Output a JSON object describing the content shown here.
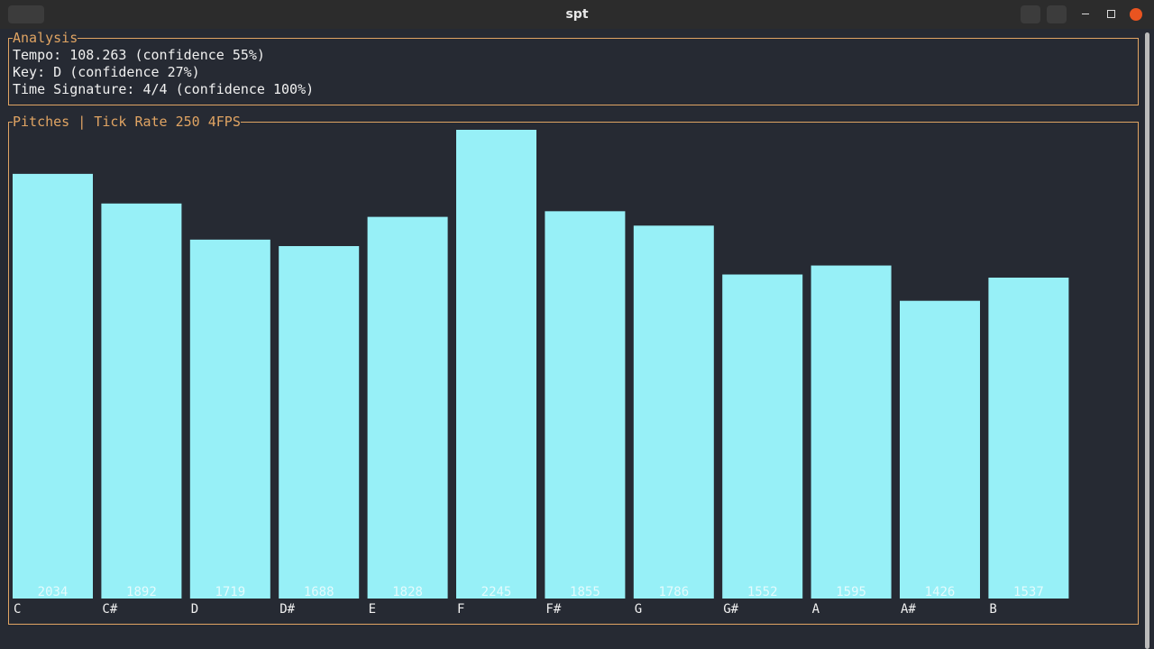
{
  "window": {
    "title": "spt"
  },
  "analysis": {
    "title": "Analysis",
    "lines": [
      "Tempo: 108.263 (confidence 55%)",
      "Key: D (confidence 27%)",
      "Time Signature: 4/4 (confidence 100%)"
    ]
  },
  "chart_data": {
    "type": "bar",
    "title": "Pitches | Tick Rate 250 4FPS",
    "categories": [
      "C",
      "C#",
      "D",
      "D#",
      "E",
      "F",
      "F#",
      "G",
      "G#",
      "A",
      "A#",
      "B"
    ],
    "values": [
      2034,
      1892,
      1719,
      1688,
      1828,
      2245,
      1855,
      1786,
      1552,
      1595,
      1426,
      1537
    ],
    "color": "#97f0f7"
  }
}
